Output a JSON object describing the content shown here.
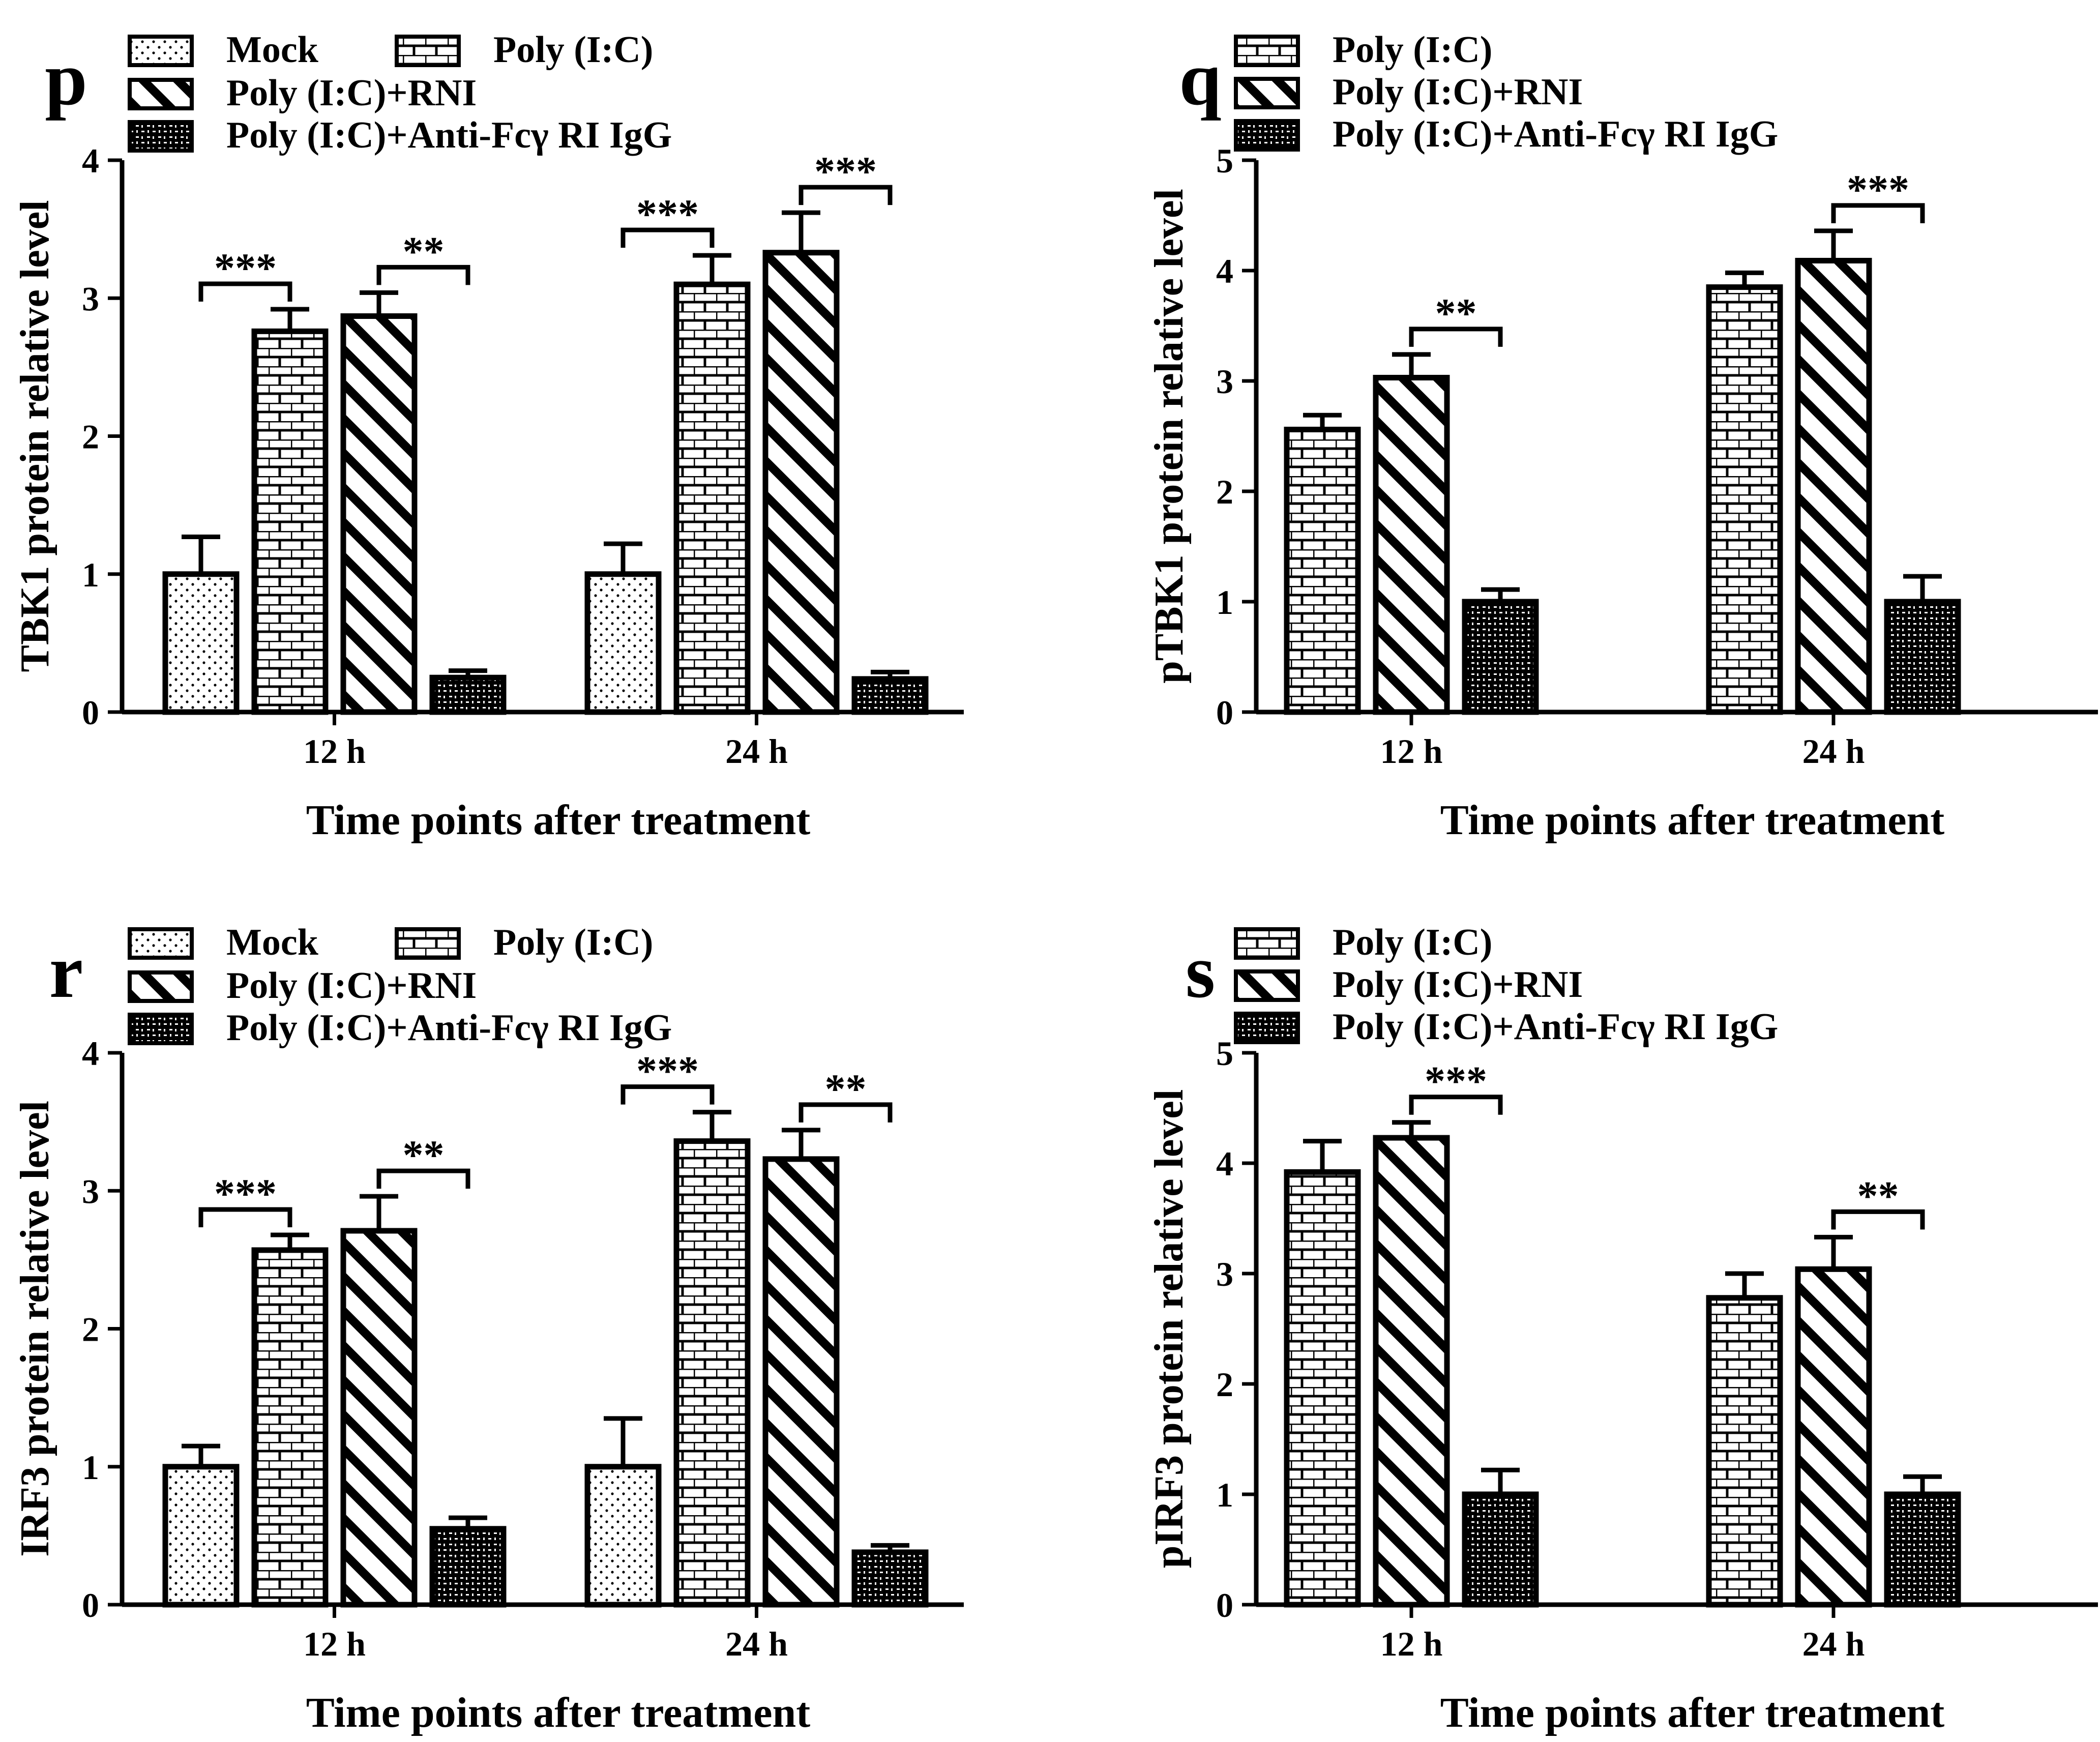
{
  "figure": {
    "colors": {
      "ink": "#000000",
      "background": "#ffffff"
    },
    "patterns": {
      "Mock": "dots",
      "Poly (I:C)": "bricks",
      "Poly (I:C)+RNI": "diagonal-stripes",
      "Poly (I:C)+Anti-Fcγ  RI IgG": "dark-checker"
    }
  },
  "chart_data": [
    {
      "panel_label": "p",
      "type": "bar",
      "categories": [
        "12 h",
        "24 h"
      ],
      "series": [
        {
          "name": "Mock",
          "values": [
            1.0,
            1.0
          ],
          "errors": [
            0.27,
            0.22
          ]
        },
        {
          "name": "Poly (I:C)",
          "values": [
            2.76,
            3.1
          ],
          "errors": [
            0.16,
            0.21
          ]
        },
        {
          "name": "Poly (I:C)+RNI",
          "values": [
            2.87,
            3.33
          ],
          "errors": [
            0.17,
            0.29
          ]
        },
        {
          "name": "Poly (I:C)+Anti-Fcγ  RI IgG",
          "values": [
            0.25,
            0.24
          ],
          "errors": [
            0.05,
            0.05
          ]
        }
      ],
      "significance": [
        {
          "category": "12 h",
          "from": "Mock",
          "to": "Poly (I:C)",
          "label": "***"
        },
        {
          "category": "12 h",
          "from": "Poly (I:C)+RNI",
          "to": "Poly (I:C)+Anti-Fcγ  RI IgG",
          "label": "**"
        },
        {
          "category": "24 h",
          "from": "Mock",
          "to": "Poly (I:C)",
          "label": "***"
        },
        {
          "category": "24 h",
          "from": "Poly (I:C)+RNI",
          "to": "Poly (I:C)+Anti-Fcγ  RI IgG",
          "label": "***"
        }
      ],
      "legend_layout": "two-column",
      "legend_entries": [
        "Mock",
        "Poly (I:C)",
        "Poly (I:C)+RNI",
        "Poly (I:C)+Anti-Fcγ  RI IgG"
      ],
      "xlabel": "Time points after treatment",
      "ylabel": "TBK1 protein relative level",
      "ylim": [
        0,
        4
      ],
      "yticks": [
        0,
        1,
        2,
        3,
        4
      ]
    },
    {
      "panel_label": "q",
      "type": "bar",
      "categories": [
        "12 h",
        "24 h"
      ],
      "series": [
        {
          "name": "Poly (I:C)",
          "values": [
            2.56,
            3.85
          ],
          "errors": [
            0.13,
            0.13
          ]
        },
        {
          "name": "Poly (I:C)+RNI",
          "values": [
            3.03,
            4.09
          ],
          "errors": [
            0.21,
            0.27
          ]
        },
        {
          "name": "Poly (I:C)+Anti-Fcγ  RI IgG",
          "values": [
            1.0,
            1.0
          ],
          "errors": [
            0.11,
            0.23
          ]
        }
      ],
      "significance": [
        {
          "category": "12 h",
          "from": "Poly (I:C)+RNI",
          "to": "Poly (I:C)+Anti-Fcγ  RI IgG",
          "label": "**"
        },
        {
          "category": "24 h",
          "from": "Poly (I:C)+RNI",
          "to": "Poly (I:C)+Anti-Fcγ  RI IgG",
          "label": "***"
        }
      ],
      "legend_layout": "one-column",
      "legend_entries": [
        "Poly (I:C)",
        "Poly (I:C)+RNI",
        "Poly (I:C)+Anti-Fcγ  RI IgG"
      ],
      "xlabel": "Time points after treatment",
      "ylabel": "pTBK1 protein relative level",
      "ylim": [
        0,
        5
      ],
      "yticks": [
        0,
        1,
        2,
        3,
        4,
        5
      ]
    },
    {
      "panel_label": "r",
      "type": "bar",
      "categories": [
        "12 h",
        "24 h"
      ],
      "series": [
        {
          "name": "Mock",
          "values": [
            1.0,
            1.0
          ],
          "errors": [
            0.15,
            0.35
          ]
        },
        {
          "name": "Poly (I:C)",
          "values": [
            2.57,
            3.36
          ],
          "errors": [
            0.11,
            0.21
          ]
        },
        {
          "name": "Poly (I:C)+RNI",
          "values": [
            2.71,
            3.23
          ],
          "errors": [
            0.25,
            0.21
          ]
        },
        {
          "name": "Poly (I:C)+Anti-Fcγ  RI IgG",
          "values": [
            0.55,
            0.38
          ],
          "errors": [
            0.08,
            0.05
          ]
        }
      ],
      "significance": [
        {
          "category": "12 h",
          "from": "Mock",
          "to": "Poly (I:C)",
          "label": "***"
        },
        {
          "category": "12 h",
          "from": "Poly (I:C)+RNI",
          "to": "Poly (I:C)+Anti-Fcγ  RI IgG",
          "label": "**"
        },
        {
          "category": "24 h",
          "from": "Mock",
          "to": "Poly (I:C)",
          "label": "***"
        },
        {
          "category": "24 h",
          "from": "Poly (I:C)+RNI",
          "to": "Poly (I:C)+Anti-Fcγ  RI IgG",
          "label": "**"
        }
      ],
      "legend_layout": "two-column",
      "legend_entries": [
        "Mock",
        "Poly (I:C)",
        "Poly (I:C)+RNI",
        "Poly (I:C)+Anti-Fcγ  RI IgG"
      ],
      "xlabel": "Time points after treatment",
      "ylabel": "IRF3 protein relative level",
      "ylim": [
        0,
        4
      ],
      "yticks": [
        0,
        1,
        2,
        3,
        4
      ]
    },
    {
      "panel_label": "s",
      "type": "bar",
      "categories": [
        "12 h",
        "24 h"
      ],
      "series": [
        {
          "name": "Poly (I:C)",
          "values": [
            3.92,
            2.78
          ],
          "errors": [
            0.28,
            0.22
          ]
        },
        {
          "name": "Poly (I:C)+RNI",
          "values": [
            4.23,
            3.04
          ],
          "errors": [
            0.14,
            0.29
          ]
        },
        {
          "name": "Poly (I:C)+Anti-Fcγ  RI IgG",
          "values": [
            1.0,
            1.0
          ],
          "errors": [
            0.22,
            0.16
          ]
        }
      ],
      "significance": [
        {
          "category": "12 h",
          "from": "Poly (I:C)+RNI",
          "to": "Poly (I:C)+Anti-Fcγ  RI IgG",
          "label": "***"
        },
        {
          "category": "24 h",
          "from": "Poly (I:C)+RNI",
          "to": "Poly (I:C)+Anti-Fcγ  RI IgG",
          "label": "**"
        }
      ],
      "legend_layout": "one-column",
      "legend_entries": [
        "Poly (I:C)",
        "Poly (I:C)+RNI",
        "Poly (I:C)+Anti-Fcγ  RI IgG"
      ],
      "xlabel": "Time points after treatment",
      "ylabel": "pIRF3 protein relative level",
      "ylim": [
        0,
        5
      ],
      "yticks": [
        0,
        1,
        2,
        3,
        4,
        5
      ]
    }
  ]
}
